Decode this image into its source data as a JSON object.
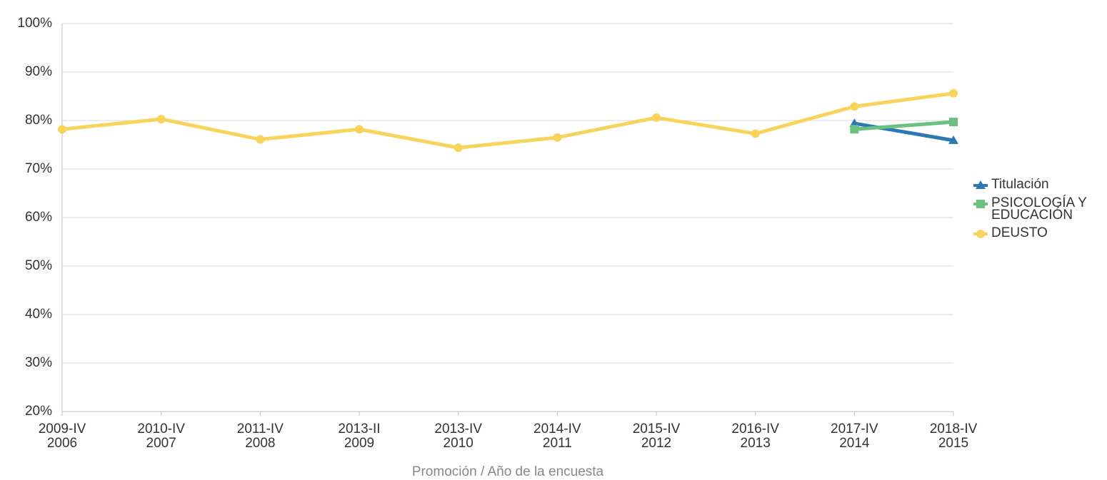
{
  "chart_data": {
    "type": "line",
    "x_label": "Promoción / Año de la encuesta",
    "categories": [
      [
        "2009-IV",
        "2006"
      ],
      [
        "2010-IV",
        "2007"
      ],
      [
        "2011-IV",
        "2008"
      ],
      [
        "2013-II",
        "2009"
      ],
      [
        "2013-IV",
        "2010"
      ],
      [
        "2014-IV",
        "2011"
      ],
      [
        "2015-IV",
        "2012"
      ],
      [
        "2016-IV",
        "2013"
      ],
      [
        "2017-IV",
        "2014"
      ],
      [
        "2018-IV",
        "2015"
      ]
    ],
    "series": [
      {
        "name": "Titulación",
        "color": "#2b78b4",
        "marker": "triangle",
        "values": [
          null,
          null,
          null,
          null,
          null,
          null,
          null,
          null,
          79.4,
          75.9
        ]
      },
      {
        "name": "PSICOLOGÍA Y EDUCACIÓN",
        "color": "#6cc17f",
        "marker": "square",
        "values": [
          null,
          null,
          null,
          null,
          null,
          null,
          null,
          null,
          78.2,
          79.7
        ]
      },
      {
        "name": "DEUSTO",
        "color": "#f8d45c",
        "marker": "circle",
        "values": [
          78.2,
          80.3,
          76.1,
          78.2,
          74.4,
          76.5,
          80.6,
          77.3,
          82.9,
          85.6
        ]
      }
    ],
    "ylim": [
      20,
      100
    ],
    "yticks": [
      {
        "value": 20,
        "label": "20%"
      },
      {
        "value": 30,
        "label": "30%"
      },
      {
        "value": 40,
        "label": "40%"
      },
      {
        "value": 50,
        "label": "50%"
      },
      {
        "value": 60,
        "label": "60%"
      },
      {
        "value": 70,
        "label": "70%"
      },
      {
        "value": 80,
        "label": "80%"
      },
      {
        "value": 90,
        "label": "90%"
      },
      {
        "value": 100,
        "label": "100%"
      }
    ],
    "grid": true,
    "legend": "right"
  }
}
